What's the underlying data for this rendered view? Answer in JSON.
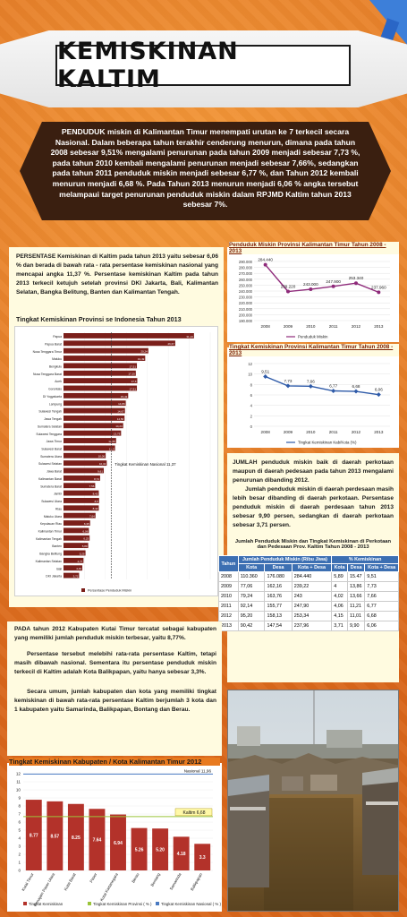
{
  "title": "KEMISKINAN KALTIM",
  "intro": "PENDUDUK miskin di Kalimantan Timur menempati urutan ke 7 terkecil secara Nasional. Dalam beberapa tahun terakhir cenderung menurun, dimana pada tahun 2008 sebesar 9,51% mengalami penurunan pada tahun 2009 menjadi sebesar 7,73 %, pada tahun 2010 kembali mengalami penurunan menjadi sebesar 7,66%, sedangkan pada tahun 2011 penduduk miskin menjadi sebesar 6,77 %, dan Tahun 2012 kembali menurun menjadi 6,68 %. Pada Tahun 2013 menurun menjadi 6,06 % angka tersebut melampaui target penurunan penduduk miskin dalam RPJMD Kaltim tahun 2013 sebesar 7%.",
  "left_para": "PERSENTASE Kemiskinan di Kaltim pada tahun 2013 yaitu sebesar 6,06 % dan berada di bawah rata - rata persentase kemiskinan nasional yang mencapai angka 11,37 %. Persentase kemiskinan Kaltim pada tahun 2013 terkecil ketujuh setelah provinsi DKI Jakarta, Bali, Kalimantan Selatan, Bangka Belitung, Banten dan Kalimantan Tengah.",
  "prov_chart_title": "Tingkat Kemiskinan Provinsi se Indonesia Tahun 2013",
  "prov_chart_nat_label": "Tingkat Kemiskinan Nasional 11,37",
  "prov_chart_legend": "Persentase Penduduk Miskin",
  "right_para1": "JUMLAH penduduk miskin baik di daerah perkotaan maupun di daerah pedesaan pada tahun 2013 mengalami penurunan dibanding 2012.",
  "right_para2": "Jumlah penduduk miskin di daerah perdesaan masih lebih besar dibanding di daerah perkotaan. Persentase penduduk miskin di daerah perdesaan tahun 2013 sebesar 9,90 persen, sedangkan di daerah perkotaan sebesar 3,71 persen.",
  "table_title": "Jumlah Penduduk Miskin dan Tingkat Kemiskinan di Perkotaan dan Pedesaan Prov. Kaltim Tahun 2008 - 2013",
  "table": {
    "h_tahun": "Tahun",
    "h_jumlah": "Jumlah Penduduk Miskin (Ribu Jiwa)",
    "h_persen": "% Kemiskinan",
    "sub": [
      "Kota",
      "Desa",
      "Kota + Desa",
      "Kota",
      "Desa",
      "Kota + Desa"
    ],
    "rows": [
      [
        "2008",
        "110.360",
        "176.080",
        "284.440",
        "5,89",
        "15.47",
        "9,51"
      ],
      [
        "2009",
        "77,06",
        "162,16",
        "239,22",
        "4",
        "13,86",
        "7,73"
      ],
      [
        "2010",
        "79,24",
        "163,76",
        "243",
        "4,02",
        "13,66",
        "7,66"
      ],
      [
        "2011",
        "92,14",
        "155,77",
        "247,90",
        "4,06",
        "11,21",
        "6,77"
      ],
      [
        "2012",
        "95,20",
        "158,13",
        "253,34",
        "4,15",
        "11,01",
        "6,68"
      ],
      [
        "2013",
        "90,42",
        "147,54",
        "237,96",
        "3,71",
        "9,90",
        "6,06"
      ]
    ]
  },
  "bottom_para1": "PADA tahun 2012 Kabupaten Kutai Timur tercatat sebagai kabupaten yang memiliki jumlah penduduk miskin terbesar, yaitu 8,77%.",
  "bottom_para2": "Persentase tersebut melebihi rata-rata persentase Kaltim, tetapi masih dibawah nasional. Sementara itu persentase penduduk miskin terkecil di Kaltim adalah Kota Balikpapan, yaitu hanya sebesar 3,3%.",
  "bottom_para3": "Secara umum, jumlah kabupaten dan kota yang memiliki tingkat kemiskinan di bawah rata-rata persentase Kaltim berjumlah 3 kota dan 1 kabupaten yaitu Samarinda, Balikpapan, Bontang dan Berau.",
  "kab_chart_title": "Tingkat Kemiskinan Kabupaten / Kota Kalimantan Timur 2012",
  "kab_nat_label": "Nasional 11,96",
  "kab_kaltim_label": "Kaltim 6,68",
  "kab_legend": [
    "Tingkat Kemiskinan",
    "Tingkat Kemiskinan Provinsi ( % )",
    "Tingkat Kemiskinan Nasional ( % )"
  ],
  "colors": {
    "orange": "#e87a1f",
    "dark": "#3a1f10",
    "bar": "#c0392b",
    "line": "#7a2a8a",
    "blue": "#3c6fb2"
  },
  "chart_data": [
    {
      "type": "line",
      "title": "Penduduk Miskin Provinsi Kalimantan Timur Tahun 2008 - 2013",
      "x": [
        "2008",
        "2009",
        "2010",
        "2011",
        "2012",
        "2013"
      ],
      "series": [
        {
          "name": "Penduduk Miskin",
          "values": [
            284.44,
            239.22,
            243.0,
            247.9,
            253.34,
            237.96
          ]
        }
      ],
      "value_labels": [
        "284.440",
        "239.220",
        "243.000",
        "247.900",
        "253.340",
        "237.960"
      ],
      "ylim": [
        190,
        290
      ],
      "yticks": [
        "190.000",
        "200.000",
        "210.000",
        "220.000",
        "230.000",
        "240.000",
        "250.000",
        "260.000",
        "270.000",
        "280.000",
        "290.000"
      ]
    },
    {
      "type": "line",
      "title": "Tingkat Kemiskinan Provinsi Kalimantan Timur Tahun 2008 - 2013",
      "x": [
        "2008",
        "2009",
        "2010",
        "2011",
        "2012",
        "2013"
      ],
      "series": [
        {
          "name": "Tingkat Kemiskinan Kab/Kota (%)",
          "values": [
            9.51,
            7.73,
            7.66,
            6.77,
            6.68,
            6.06
          ]
        }
      ],
      "value_labels": [
        "9,51",
        "7,73",
        "7,66",
        "6,77",
        "6,68",
        "6,06"
      ],
      "ylim": [
        0,
        12
      ],
      "yticks": [
        "0",
        "2",
        "4",
        "6",
        "8",
        "10",
        "12"
      ]
    },
    {
      "type": "bar",
      "orientation": "horizontal",
      "title": "Tingkat Kemiskinan Provinsi se Indonesia Tahun 2013",
      "categories": [
        "Papua",
        "Papua Barat",
        "Nusa Tenggara Timur",
        "Maluku",
        "Bengkulu",
        "Nusa Tenggara Barat",
        "Aceh",
        "Gorontalo",
        "DI Yogyakarta",
        "Lampung",
        "Sulawesi Tengah",
        "Jawa Tengah",
        "Sumatera Selatan",
        "Sulawesi Tenggara",
        "Jawa Timur",
        "Sulawesi Barat",
        "Sumatera Utara",
        "Sulawesi Selatan",
        "Jawa Barat",
        "Kalimantan Barat",
        "Sumatera Barat",
        "Jambi",
        "Sulawesi Utara",
        "Riau",
        "Maluku Utara",
        "Kepulauan Riau",
        "Kalimantan Timur",
        "Kalimantan Tengah",
        "Banten",
        "Bangka Belitung",
        "Kalimantan Selatan",
        "Bali",
        "DKI Jakarta"
      ],
      "values": [
        31.13,
        26.67,
        20.24,
        19.49,
        17.51,
        17.25,
        17.6,
        17.51,
        15.43,
        14.86,
        14.67,
        14.56,
        14.24,
        13.73,
        12.55,
        12.3,
        10.06,
        10.32,
        9.61,
        8.74,
        7.56,
        8.42,
        8.5,
        8.42,
        7.64,
        6.35,
        6.06,
        6.23,
        5.89,
        5.25,
        4.77,
        4.49,
        3.72
      ],
      "xlim": [
        0,
        35
      ]
    },
    {
      "type": "bar",
      "title": "Tingkat Kemiskinan Kabupaten / Kota Kalimantan Timur 2012",
      "categories": [
        "Kutai Timur",
        "Penajam Paser Utara",
        "Kutai Barat",
        "Paser",
        "Kutai Kartanegara",
        "Berau",
        "Bontang",
        "Samarinda",
        "Balikpapan"
      ],
      "values": [
        8.77,
        8.57,
        8.25,
        7.64,
        6.94,
        5.26,
        5.2,
        4.18,
        3.3
      ],
      "value_labels": [
        "8.77",
        "8.57",
        "8.25",
        "7.64",
        "6.94",
        "5.26",
        "5.20",
        "4.18",
        "3.3"
      ],
      "ylim": [
        0,
        12
      ],
      "yticks": [
        "0",
        "1",
        "2",
        "3",
        "4",
        "5",
        "6",
        "7",
        "8",
        "9",
        "10",
        "11",
        "12"
      ],
      "ref_lines": {
        "nasional": 11.96,
        "kaltim": 6.68
      }
    }
  ]
}
